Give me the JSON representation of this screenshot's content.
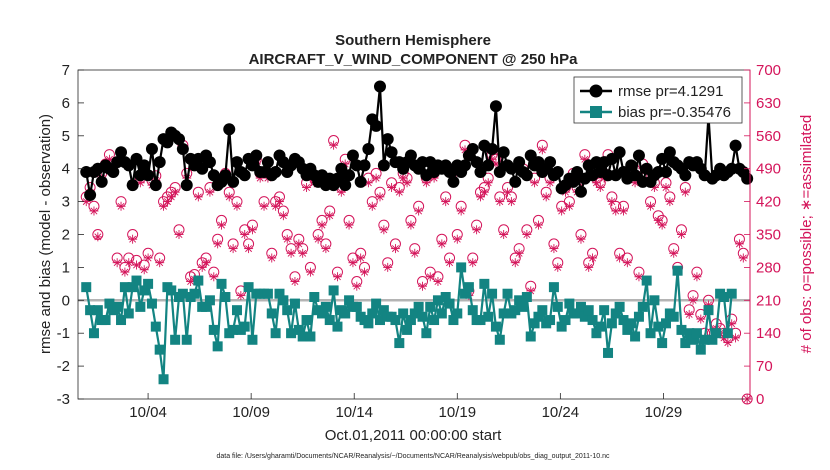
{
  "chart_data": {
    "type": "line",
    "title": "Southern Hemisphere",
    "subtitle": "AIRCRAFT_V_WIND_COMPONENT @ 250 hPa",
    "ylabel": "rmse and bias (model - observation)",
    "ylabel_right": "# of obs: o=possible; ∗=assimilated",
    "xlabel": "Oct.01,2011 00:00:00 start",
    "footnote": "data file: /Users/gharamti/Documents/NCAR/Reanalysis/~/Documents/NCAR/Reanalysis/webpub/obs_diag_output_2011-10.nc",
    "ylim": [
      -3,
      7
    ],
    "yticks": [
      "-3",
      "-2",
      "-1",
      "0",
      "1",
      "2",
      "3",
      "4",
      "5",
      "6",
      "7"
    ],
    "ylim_right": [
      0,
      700
    ],
    "yticks_right": [
      "0",
      "70",
      "140",
      "210",
      "280",
      "350",
      "420",
      "490",
      "560",
      "630",
      "700"
    ],
    "xlim": [
      0.6,
      33.2
    ],
    "xticks": [
      {
        "day": 4,
        "label": "10/04"
      },
      {
        "day": 9,
        "label": "10/09"
      },
      {
        "day": 14,
        "label": "10/14"
      },
      {
        "day": 19,
        "label": "10/19"
      },
      {
        "day": 24,
        "label": "10/24"
      },
      {
        "day": 29,
        "label": "10/29"
      }
    ],
    "colors": {
      "rmse": "#000000",
      "bias": "#138482",
      "obs": "#d4145a",
      "zero": "#b4b4b4"
    },
    "legend": {
      "placement": "top-right",
      "entries": [
        "rmse pr=4.1291",
        "bias pr=-0.35476"
      ]
    },
    "series": [
      {
        "name": "rmse pr=4.1291",
        "values": [
          3.9,
          3.2,
          3.9,
          4.0,
          3.6,
          4.1,
          4.0,
          3.9,
          4.2,
          4.5,
          4.2,
          4.1,
          3.5,
          4.3,
          3.8,
          4.1,
          3.8,
          4.6,
          3.5,
          4.2,
          4.9,
          4.8,
          5.1,
          5.0,
          4.9,
          4.6,
          3.5,
          4.3,
          4.1,
          4.3,
          4.0,
          4.4,
          4.2,
          3.8,
          3.5,
          3.6,
          3.8,
          5.2,
          3.6,
          4.2,
          3.9,
          3.8,
          4.3,
          4.1,
          4.4,
          3.9,
          3.9,
          4.2,
          3.8,
          3.9,
          4.4,
          4.2,
          3.9,
          4.1,
          4.3,
          4.2,
          4.0,
          3.8,
          4.0,
          3.8,
          3.6,
          3.8,
          3.5,
          3.7,
          3.5,
          3.7,
          4.0,
          3.5,
          3.8,
          4.4,
          4.1,
          3.6,
          4.1,
          4.6,
          5.5,
          5.3,
          6.5,
          4.1,
          4.9,
          4.5,
          4.2,
          4.2,
          4.0,
          4.2,
          4.4,
          4.1,
          4.0,
          4.2,
          3.8,
          4.2,
          3.9,
          4.1,
          4.0,
          4.1,
          3.9,
          3.6,
          4.1,
          3.9,
          4.1,
          4.4,
          4.6,
          4.2,
          3.9,
          4.7,
          4.1,
          4.6,
          5.9,
          3.9,
          4.5,
          4.1,
          4.0,
          3.6,
          4.2,
          3.9,
          3.8,
          4.4,
          4.1,
          4.2,
          3.9,
          4.0,
          4.2,
          3.8,
          3.9,
          3.4,
          3.5,
          3.7,
          3.6,
          3.9,
          3.3,
          3.7,
          4.1,
          3.8,
          4.2,
          3.9,
          4.2,
          3.8,
          4.3,
          3.8,
          4.5,
          3.9,
          3.7,
          4.1,
          3.8,
          4.4,
          3.6,
          4.0,
          3.6,
          3.8,
          3.9,
          4.3,
          3.9,
          4.5,
          4.2,
          4.1,
          4.0,
          3.8,
          4.2,
          4.1,
          4.2,
          4.0,
          3.8,
          5.6,
          3.7,
          3.8,
          4.0,
          3.8,
          3.9,
          4.0,
          4.7,
          4.0,
          3.9,
          3.7
        ]
      },
      {
        "name": "bias pr=-0.35476",
        "values": [
          0.4,
          -0.3,
          -1.0,
          -0.3,
          -0.6,
          -0.6,
          -0.1,
          -0.3,
          -0.2,
          -0.6,
          0.4,
          -0.4,
          0.4,
          0.6,
          -0.2,
          0.3,
          0.5,
          -0.1,
          -0.8,
          -1.5,
          -2.4,
          0.4,
          0.3,
          -1.2,
          0.1,
          0.2,
          -1.2,
          0.1,
          0.2,
          0.6,
          -0.2,
          -0.2,
          0.0,
          -0.9,
          -1.4,
          0.5,
          0.1,
          -1.0,
          -0.9,
          -0.3,
          -0.9,
          -0.8,
          0.4,
          -1.2,
          0.2,
          0.2,
          0.2,
          0.2,
          -0.4,
          -1.0,
          0.2,
          0.0,
          -0.3,
          -1.0,
          -0.1,
          -0.9,
          -1.1,
          -0.6,
          -1.1,
          0.1,
          -0.3,
          -0.4,
          -0.2,
          -0.6,
          0.3,
          -0.8,
          -0.3,
          -0.4,
          0.0,
          -0.2,
          -0.2,
          -0.5,
          -0.6,
          -0.7,
          -0.4,
          -0.1,
          -0.6,
          -0.3,
          -0.5,
          -0.5,
          -0.6,
          -1.3,
          -0.4,
          -0.9,
          -0.6,
          -0.4,
          -0.2,
          -0.5,
          -1.0,
          -0.2,
          -0.6,
          0.0,
          -0.4,
          0.1,
          -0.1,
          -0.6,
          -0.4,
          1.0,
          0.2,
          0.4,
          -0.3,
          -0.6,
          -0.6,
          0.5,
          -0.5,
          0.2,
          -0.8,
          -1.2,
          -0.4,
          0.2,
          -0.4,
          -0.3,
          0.0,
          -0.2,
          0.1,
          -1.1,
          -0.7,
          -0.5,
          -0.3,
          -0.7,
          -0.6,
          0.4,
          -0.2,
          -0.8,
          -0.6,
          -0.1,
          -0.4,
          -0.4,
          -0.2,
          -0.5,
          -0.3,
          -0.6,
          -1.0,
          -0.8,
          -0.3,
          -1.6,
          -0.7,
          -0.4,
          -0.2,
          -0.6,
          -0.9,
          -0.7,
          -1.1,
          -0.5,
          -0.2,
          0.6,
          -1.0,
          0.0,
          -0.8,
          -1.3,
          -0.7,
          -0.4,
          -0.5,
          0.9,
          -0.9,
          -1.3,
          -1.0,
          -1.2,
          -1.0,
          -1.5,
          -1.2,
          -0.3,
          -1.2,
          -1.0,
          0.2,
          0.1,
          -1.0,
          0.2
        ]
      },
      {
        "name": "obs possible",
        "values": [
          430,
          450,
          410,
          350,
          480,
          500,
          520,
          500,
          300,
          420,
          280,
          300,
          350,
          295,
          470,
          285,
          310,
          465,
          475,
          300,
          420,
          430,
          440,
          450,
          360,
          540,
          480,
          260,
          265,
          440,
          290,
          300,
          450,
          270,
          340,
          380,
          480,
          440,
          330,
          420,
          230,
          360,
          330,
          370,
          510,
          480,
          420,
          480,
          310,
          420,
          430,
          400,
          350,
          320,
          260,
          340,
          320,
          460,
          280,
          470,
          350,
          380,
          330,
          400,
          550,
          270,
          450,
          510,
          380,
          300,
          250,
          310,
          280,
          470,
          420,
          480,
          440,
          370,
          290,
          460,
          330,
          450,
          480,
          470,
          380,
          320,
          410,
          250,
          470,
          270,
          480,
          260,
          340,
          430,
          300,
          490,
          350,
          410,
          540,
          230,
          300,
          370,
          440,
          450,
          470,
          520,
          510,
          430,
          360,
          450,
          430,
          300,
          320,
          490,
          360,
          240,
          470,
          380,
          540,
          440,
          470,
          330,
          290,
          410,
          450,
          420,
          480,
          450,
          350,
          520,
          290,
          310,
          470,
          460,
          480,
          520,
          430,
          410,
          310,
          410,
          300,
          480,
          470,
          270,
          500,
          490,
          420,
          460,
          390,
          380,
          460,
          430,
          320,
          280,
          360,
          450,
          190,
          220,
          270,
          180,
          140,
          210,
          140,
          160,
          150,
          140,
          130,
          170,
          140,
          340,
          310,
          0
        ]
      },
      {
        "name": "obs assimilated",
        "values": [
          420,
          440,
          400,
          345,
          470,
          490,
          510,
          490,
          290,
          410,
          270,
          290,
          340,
          285,
          460,
          275,
          300,
          455,
          465,
          290,
          410,
          420,
          430,
          440,
          350,
          530,
          470,
          250,
          255,
          430,
          280,
          290,
          440,
          260,
          330,
          370,
          470,
          430,
          320,
          410,
          220,
          350,
          320,
          360,
          500,
          470,
          410,
          470,
          300,
          410,
          420,
          390,
          340,
          310,
          250,
          330,
          310,
          450,
          270,
          460,
          340,
          370,
          320,
          390,
          540,
          260,
          440,
          500,
          370,
          290,
          240,
          300,
          270,
          460,
          410,
          470,
          430,
          360,
          280,
          450,
          320,
          440,
          470,
          460,
          370,
          310,
          400,
          240,
          460,
          260,
          470,
          250,
          330,
          420,
          290,
          480,
          340,
          400,
          530,
          220,
          290,
          360,
          430,
          440,
          460,
          510,
          500,
          420,
          350,
          440,
          420,
          290,
          310,
          480,
          350,
          230,
          460,
          370,
          530,
          430,
          460,
          320,
          280,
          400,
          440,
          410,
          470,
          440,
          340,
          510,
          280,
          300,
          460,
          450,
          470,
          510,
          420,
          400,
          300,
          400,
          290,
          470,
          460,
          260,
          490,
          480,
          410,
          450,
          380,
          370,
          450,
          420,
          310,
          270,
          350,
          440,
          180,
          210,
          260,
          170,
          130,
          200,
          130,
          150,
          140,
          130,
          120,
          160,
          130,
          330,
          300,
          0
        ]
      }
    ]
  }
}
